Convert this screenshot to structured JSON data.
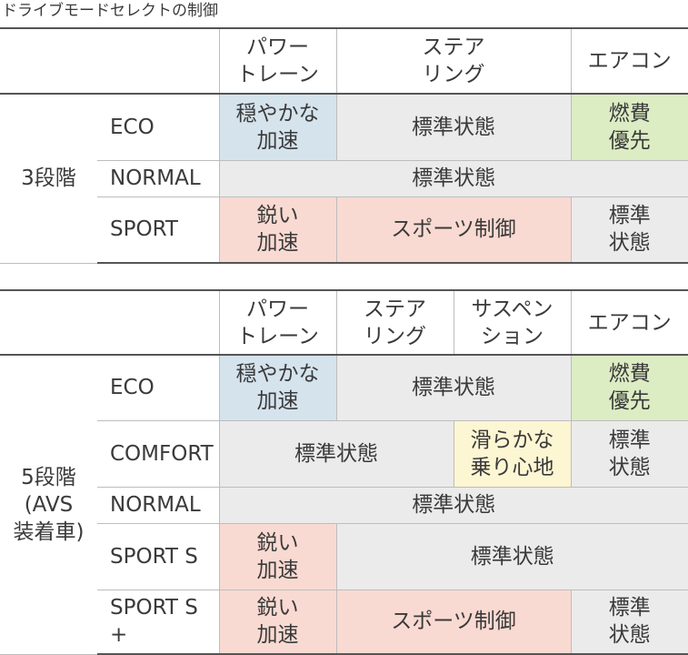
{
  "caption": "ドライブモードセレクトの制御",
  "table3": {
    "headers": {
      "powertrain": "パワー\nトレーン",
      "steering": "ステア\nリング",
      "aircon": "エアコン"
    },
    "group": "3段階",
    "rows": [
      {
        "mode": "ECO",
        "powertrain": "穏やかな\n加速",
        "steering": "標準状態",
        "aircon": "燃費\n優先"
      },
      {
        "mode": "NORMAL",
        "all": "標準状態"
      },
      {
        "mode": "SPORT",
        "powertrain": "鋭い\n加速",
        "steering": "スポーツ制御",
        "aircon": "標準\n状態"
      }
    ]
  },
  "table5": {
    "headers": {
      "powertrain": "パワー\nトレーン",
      "steering": "ステア\nリング",
      "suspension": "サスペン\nション",
      "aircon": "エアコン"
    },
    "group": "5段階\n(AVS\n装着車)",
    "rows": [
      {
        "mode": "ECO",
        "powertrain": "穏やかな\n加速",
        "steering_suspension": "標準状態",
        "aircon": "燃費\n優先"
      },
      {
        "mode": "COMFORT",
        "powertrain_steering": "標準状態",
        "suspension": "滑らかな\n乗り心地",
        "aircon": "標準\n状態"
      },
      {
        "mode": "NORMAL",
        "all": "標準状態"
      },
      {
        "mode": "SPORT S",
        "powertrain": "鋭い\n加速",
        "rest": "標準状態"
      },
      {
        "mode": "SPORT S +",
        "powertrain": "鋭い\n加速",
        "steering_suspension": "スポーツ制御",
        "aircon": "標準\n状態"
      }
    ]
  },
  "colors": {
    "grey": "#ebebeb",
    "blue": "#d5e3ed",
    "green": "#dcecc3",
    "pink": "#f9dad2",
    "yellow": "#fdf6d3"
  }
}
